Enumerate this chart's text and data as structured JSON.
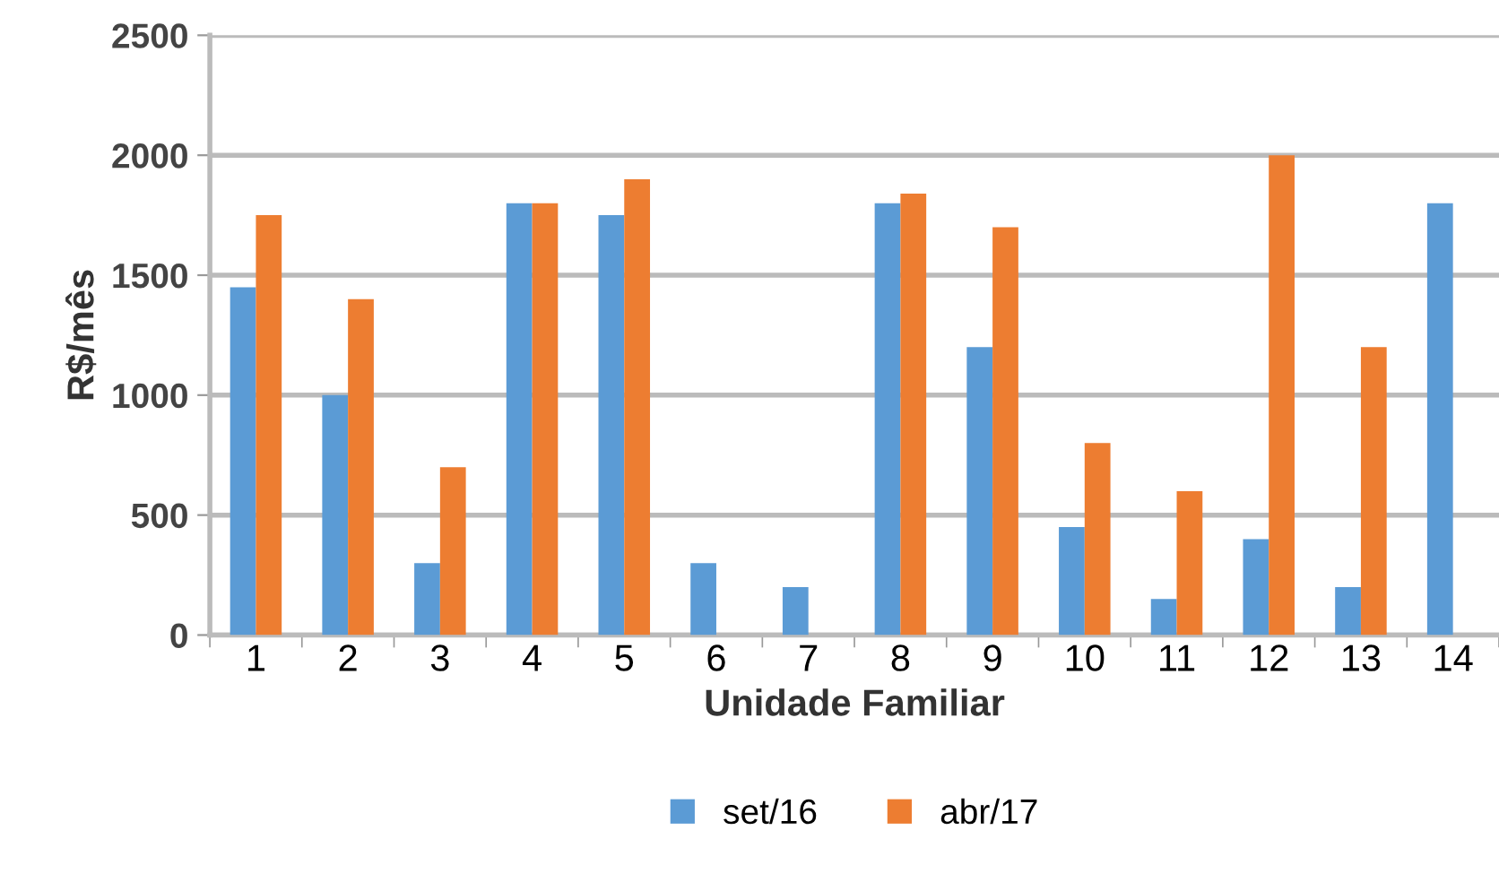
{
  "chart_data": {
    "type": "bar",
    "xlabel": "Unidade Familiar",
    "ylabel": "R$/mês",
    "categories": [
      "1",
      "2",
      "3",
      "4",
      "5",
      "6",
      "7",
      "8",
      "9",
      "10",
      "11",
      "12",
      "13",
      "14"
    ],
    "series": [
      {
        "name": "set/16",
        "color": "#5b9bd5",
        "values": [
          1450,
          1000,
          300,
          1800,
          1750,
          300,
          200,
          1800,
          1200,
          450,
          150,
          400,
          200,
          1800
        ]
      },
      {
        "name": "abr/17",
        "color": "#ed7d31",
        "values": [
          1750,
          1400,
          700,
          1800,
          1900,
          null,
          null,
          1840,
          1700,
          800,
          600,
          2000,
          1200,
          null
        ]
      }
    ],
    "ylim": [
      0,
      2500
    ],
    "yticks": [
      0,
      500,
      1000,
      1500,
      2000,
      2500
    ],
    "grid": "y",
    "legend": "bottom"
  }
}
